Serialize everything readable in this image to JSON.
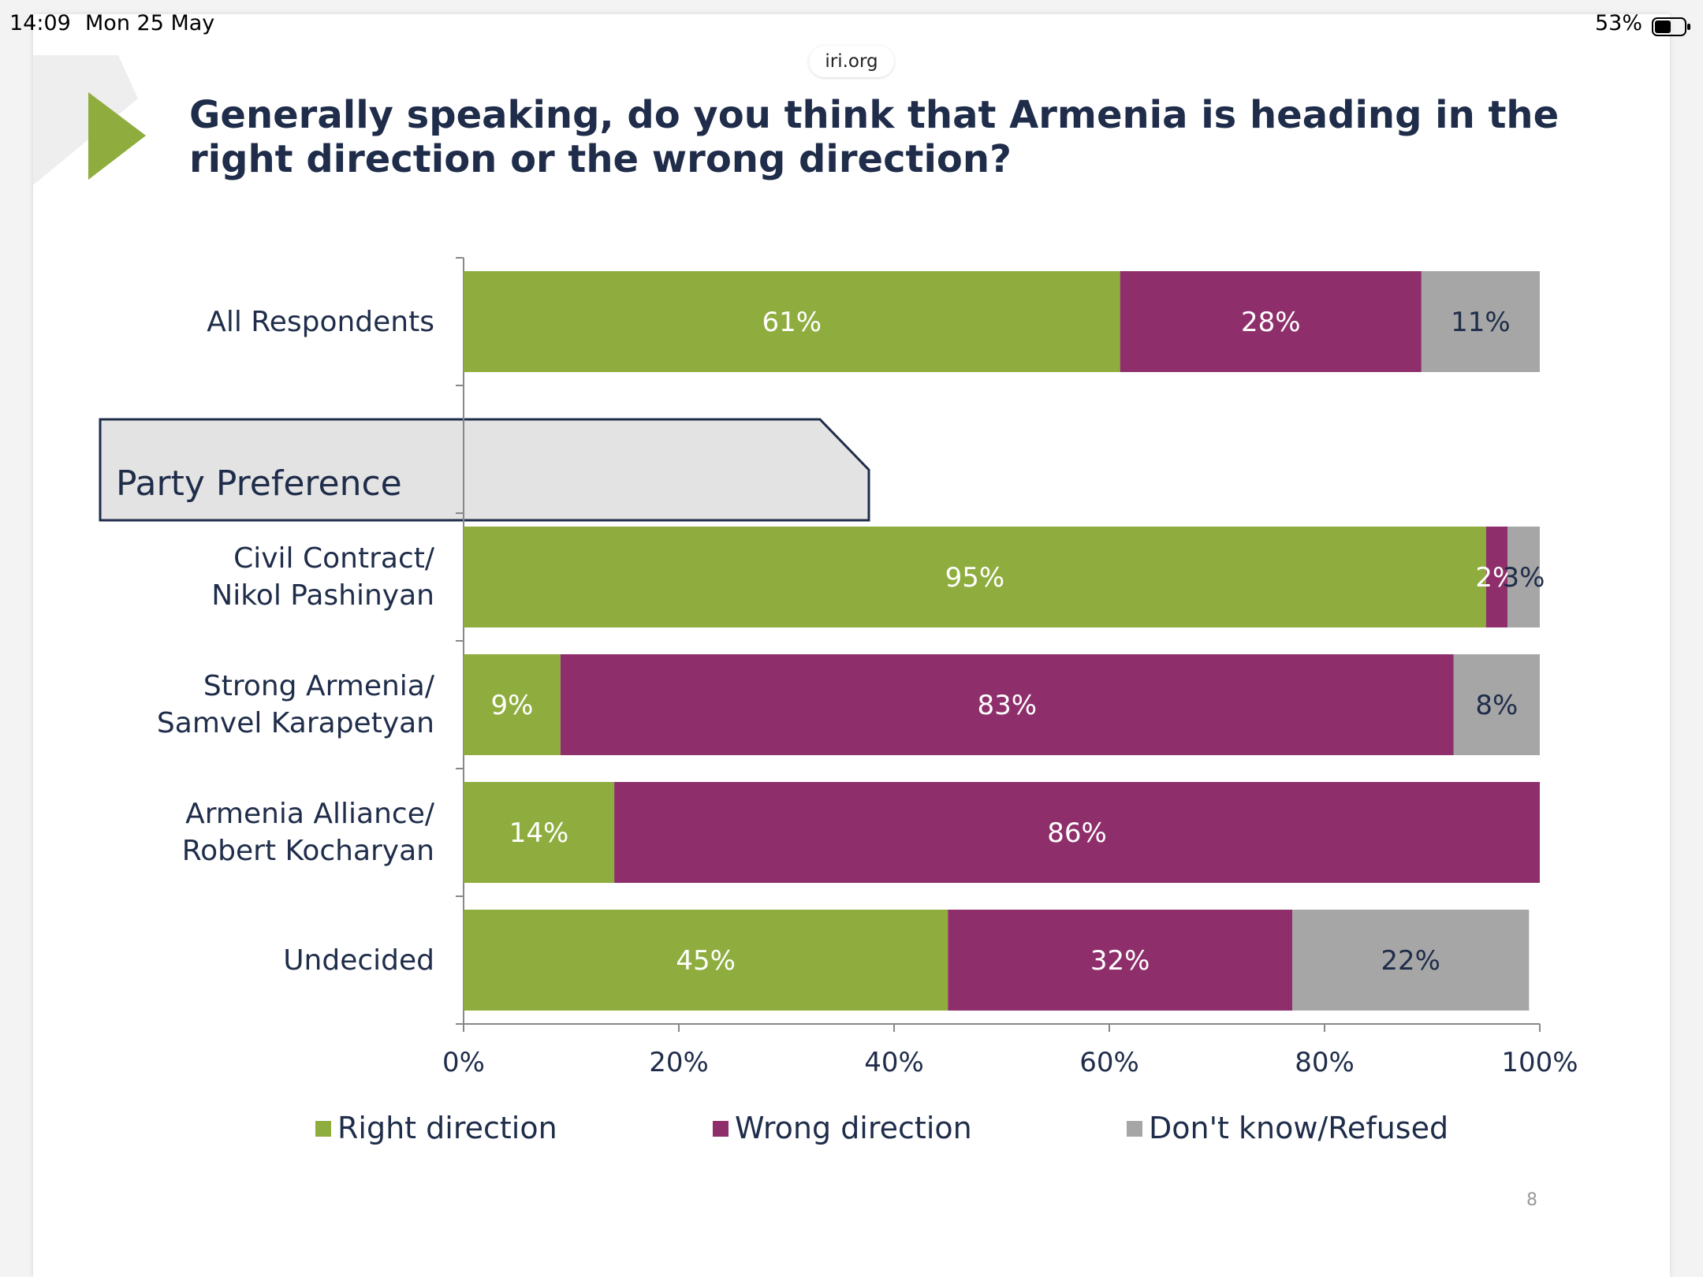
{
  "status_bar": {
    "time": "14:09",
    "date": "Mon 25 May",
    "battery": "53%"
  },
  "url": "iri.org",
  "page_number": "8",
  "chart_data": {
    "type": "stacked-barh",
    "title": "Generally speaking, do you think that Armenia is heading in the right direction or the wrong direction?",
    "annotation": "Party Preference",
    "categories": [
      "All Respondents",
      null,
      "Civil Contract/\nNikol Pashinyan",
      "Strong Armenia/\nSamvel Karapetyan",
      "Armenia Alliance/\nRobert Kocharyan",
      "Undecided"
    ],
    "series": [
      {
        "name": "Right direction",
        "color": "#8fad3f",
        "label_color": "#ffffff",
        "values": [
          61,
          null,
          95,
          9,
          14,
          45
        ],
        "value_labels": [
          "61%",
          null,
          "95%",
          "9%",
          "14%",
          "45%"
        ]
      },
      {
        "name": "Wrong direction",
        "color": "#8e2f6b",
        "label_color": "#ffffff",
        "values": [
          28,
          null,
          2,
          83,
          86,
          32
        ],
        "value_labels": [
          "28%",
          null,
          "2%",
          "83%",
          "86%",
          "32%"
        ]
      },
      {
        "name": "Don't know/Refused",
        "color": "#a6a6a6",
        "label_color": "#1f2d4a",
        "values": [
          11,
          null,
          3,
          8,
          null,
          22
        ],
        "value_labels": [
          "11%",
          null,
          "3%",
          "8%",
          null,
          "22%"
        ]
      }
    ],
    "xlim": [
      0,
      100
    ],
    "xticks": [
      {
        "value": 0,
        "label": "0%"
      },
      {
        "value": 20,
        "label": "20%"
      },
      {
        "value": 40,
        "label": "40%"
      },
      {
        "value": 60,
        "label": "60%"
      },
      {
        "value": 80,
        "label": "80%"
      },
      {
        "value": 100,
        "label": "100%"
      }
    ]
  }
}
